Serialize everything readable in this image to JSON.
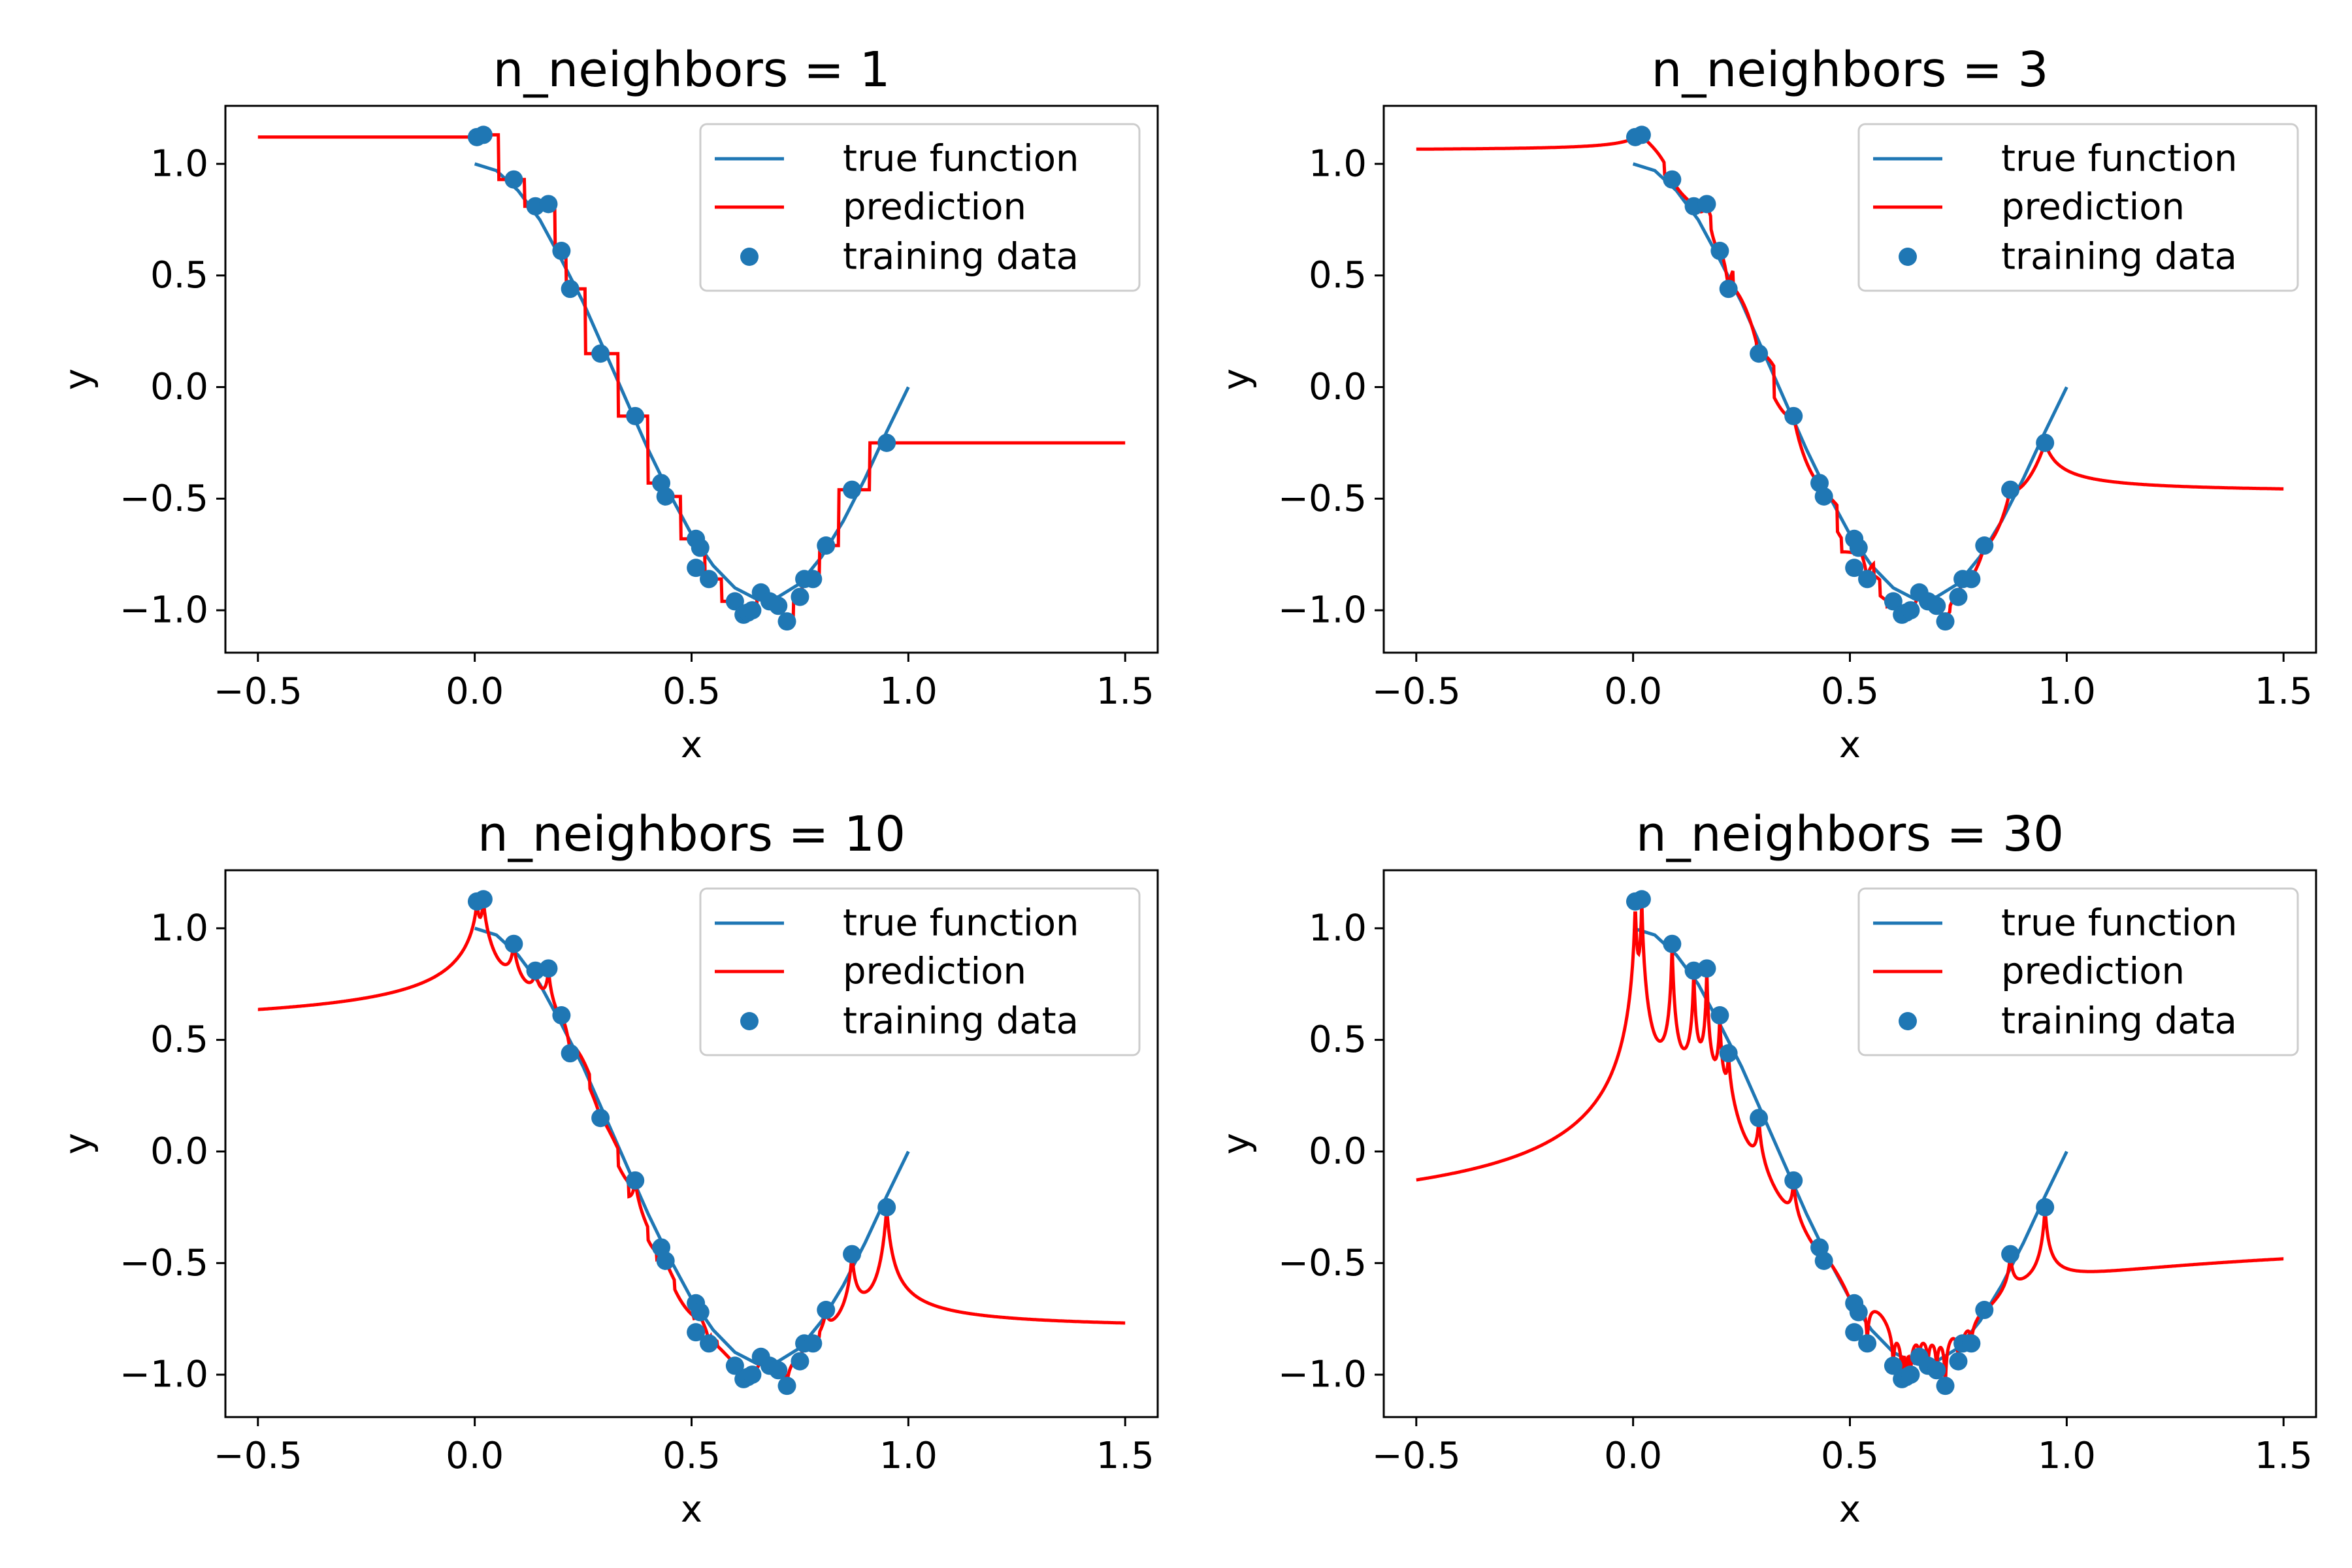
{
  "chart_data": [
    {
      "type": "line",
      "title": "n_neighbors = 1",
      "xlabel": "x",
      "ylabel": "y",
      "xlim": [
        -0.575,
        1.575
      ],
      "ylim": [
        -1.19,
        1.26
      ],
      "xticks": [
        -0.5,
        0.0,
        0.5,
        1.0,
        1.5
      ],
      "xtick_labels": [
        "−0.5",
        "0.0",
        "0.5",
        "1.0",
        "1.5"
      ],
      "yticks": [
        -1.0,
        -0.5,
        0.0,
        0.5,
        1.0
      ],
      "ytick_labels": [
        "−1.0",
        "−0.5",
        "0.0",
        "0.5",
        "1.0"
      ],
      "legend": "upper-right",
      "n_neighbors": 1,
      "series": [
        {
          "name": "true function",
          "kind": "line",
          "color": "#1f77b4"
        },
        {
          "name": "prediction",
          "kind": "line",
          "color": "#ff0000"
        },
        {
          "name": "training data",
          "kind": "scatter",
          "color": "#1f77b4"
        }
      ]
    },
    {
      "type": "line",
      "title": "n_neighbors = 3",
      "xlabel": "x",
      "ylabel": "y",
      "xlim": [
        -0.575,
        1.575
      ],
      "ylim": [
        -1.19,
        1.26
      ],
      "xticks": [
        -0.5,
        0.0,
        0.5,
        1.0,
        1.5
      ],
      "xtick_labels": [
        "−0.5",
        "0.0",
        "0.5",
        "1.0",
        "1.5"
      ],
      "yticks": [
        -1.0,
        -0.5,
        0.0,
        0.5,
        1.0
      ],
      "ytick_labels": [
        "−1.0",
        "−0.5",
        "0.0",
        "0.5",
        "1.0"
      ],
      "legend": "upper-right",
      "n_neighbors": 3,
      "series": [
        {
          "name": "true function",
          "kind": "line",
          "color": "#1f77b4"
        },
        {
          "name": "prediction",
          "kind": "line",
          "color": "#ff0000"
        },
        {
          "name": "training data",
          "kind": "scatter",
          "color": "#1f77b4"
        }
      ]
    },
    {
      "type": "line",
      "title": "n_neighbors = 10",
      "xlabel": "x",
      "ylabel": "y",
      "xlim": [
        -0.575,
        1.575
      ],
      "ylim": [
        -1.19,
        1.26
      ],
      "xticks": [
        -0.5,
        0.0,
        0.5,
        1.0,
        1.5
      ],
      "xtick_labels": [
        "−0.5",
        "0.0",
        "0.5",
        "1.0",
        "1.5"
      ],
      "yticks": [
        -1.0,
        -0.5,
        0.0,
        0.5,
        1.0
      ],
      "ytick_labels": [
        "−1.0",
        "−0.5",
        "0.0",
        "0.5",
        "1.0"
      ],
      "legend": "upper-right",
      "n_neighbors": 10,
      "series": [
        {
          "name": "true function",
          "kind": "line",
          "color": "#1f77b4"
        },
        {
          "name": "prediction",
          "kind": "line",
          "color": "#ff0000"
        },
        {
          "name": "training data",
          "kind": "scatter",
          "color": "#1f77b4"
        }
      ]
    },
    {
      "type": "line",
      "title": "n_neighbors = 30",
      "xlabel": "x",
      "ylabel": "y",
      "xlim": [
        -0.575,
        1.575
      ],
      "ylim": [
        -1.19,
        1.26
      ],
      "xticks": [
        -0.5,
        0.0,
        0.5,
        1.0,
        1.5
      ],
      "xtick_labels": [
        "−0.5",
        "0.0",
        "0.5",
        "1.0",
        "1.5"
      ],
      "yticks": [
        -1.0,
        -0.5,
        0.0,
        0.5,
        1.0
      ],
      "ytick_labels": [
        "−1.0",
        "−0.5",
        "0.0",
        "0.5",
        "1.0"
      ],
      "legend": "upper-right",
      "n_neighbors": 30,
      "series": [
        {
          "name": "true function",
          "kind": "line",
          "color": "#1f77b4"
        },
        {
          "name": "prediction",
          "kind": "line",
          "color": "#ff0000"
        },
        {
          "name": "training data",
          "kind": "scatter",
          "color": "#1f77b4"
        }
      ]
    }
  ],
  "training_data": {
    "x": [
      0.005,
      0.02,
      0.09,
      0.14,
      0.17,
      0.2,
      0.22,
      0.29,
      0.37,
      0.43,
      0.44,
      0.51,
      0.52,
      0.51,
      0.54,
      0.6,
      0.62,
      0.63,
      0.64,
      0.66,
      0.68,
      0.7,
      0.72,
      0.75,
      0.76,
      0.78,
      0.81,
      0.87,
      0.95
    ],
    "y": [
      1.12,
      1.13,
      0.93,
      0.81,
      0.82,
      0.61,
      0.44,
      0.15,
      -0.13,
      -0.43,
      -0.49,
      -0.68,
      -0.72,
      -0.81,
      -0.86,
      -0.96,
      -1.02,
      -1.01,
      -1.0,
      -0.92,
      -0.96,
      -0.98,
      -1.05,
      -0.94,
      -0.86,
      -0.86,
      -0.71,
      -0.46,
      -0.25
    ]
  },
  "true_function": {
    "x": [
      0.0,
      0.05,
      0.1,
      0.15,
      0.2,
      0.25,
      0.3,
      0.35,
      0.4,
      0.45,
      0.5,
      0.55,
      0.6,
      0.65,
      0.7,
      0.75,
      0.8,
      0.85,
      0.9,
      0.95,
      1.0
    ],
    "y": [
      1.0,
      0.97,
      0.88,
      0.75,
      0.57,
      0.38,
      0.16,
      -0.06,
      -0.28,
      -0.48,
      -0.66,
      -0.8,
      -0.9,
      -0.95,
      -0.94,
      -0.88,
      -0.76,
      -0.6,
      -0.41,
      -0.2,
      0.0
    ]
  }
}
